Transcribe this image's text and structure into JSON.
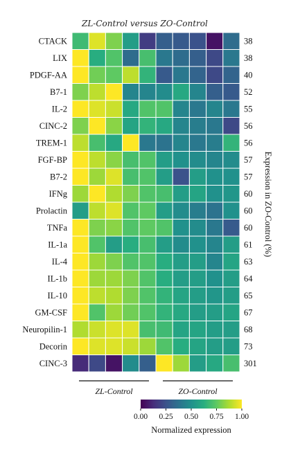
{
  "chart_data": {
    "type": "heatmap",
    "title": "ZL-Control versus ZO-Control",
    "rows": [
      "CTACK",
      "LIX",
      "PDGF-AA",
      "B7-1",
      "IL-2",
      "CINC-2",
      "TREM-1",
      "FGF-BP",
      "B7-2",
      "IFNg",
      "Prolactin",
      "TNFa",
      "IL-1a",
      "IL-4",
      "IL-1b",
      "IL-10",
      "GM-CSF",
      "Neuropilin-1",
      "Decorin",
      "CINC-3"
    ],
    "row_values": [
      38,
      38,
      40,
      52,
      55,
      56,
      56,
      57,
      57,
      60,
      60,
      60,
      61,
      63,
      64,
      65,
      67,
      68,
      73,
      301
    ],
    "right_axis_label": "Expression in ZO-Control (%)",
    "groups": [
      {
        "label": "ZL-Control",
        "columns": 5
      },
      {
        "label": "ZO-Control",
        "columns": 5
      }
    ],
    "values": [
      [
        0.68,
        0.95,
        0.8,
        0.55,
        0.18,
        0.3,
        0.28,
        0.25,
        0.05,
        0.35
      ],
      [
        1.0,
        0.62,
        0.72,
        0.35,
        0.7,
        0.4,
        0.35,
        0.3,
        0.22,
        0.4
      ],
      [
        1.0,
        0.78,
        0.75,
        0.9,
        0.65,
        0.28,
        0.4,
        0.32,
        0.22,
        0.32
      ],
      [
        0.8,
        0.9,
        1.0,
        0.45,
        0.45,
        0.48,
        0.6,
        0.45,
        0.3,
        0.28
      ],
      [
        1.0,
        0.95,
        0.92,
        0.6,
        0.72,
        0.72,
        0.45,
        0.4,
        0.45,
        0.4
      ],
      [
        0.8,
        1.0,
        0.82,
        0.58,
        0.65,
        0.6,
        0.45,
        0.42,
        0.4,
        0.22
      ],
      [
        0.9,
        0.7,
        0.6,
        1.0,
        0.4,
        0.38,
        0.45,
        0.4,
        0.42,
        0.65
      ],
      [
        1.0,
        0.9,
        0.82,
        0.7,
        0.72,
        0.55,
        0.5,
        0.48,
        0.45,
        0.48
      ],
      [
        1.0,
        0.85,
        0.95,
        0.7,
        0.72,
        0.55,
        0.25,
        0.55,
        0.5,
        0.5
      ],
      [
        0.85,
        1.0,
        0.88,
        0.8,
        0.72,
        0.7,
        0.55,
        0.58,
        0.5,
        0.52
      ],
      [
        0.55,
        0.9,
        0.95,
        0.72,
        0.75,
        0.55,
        0.48,
        0.42,
        0.38,
        0.5
      ],
      [
        1.0,
        0.8,
        0.82,
        0.72,
        0.75,
        0.72,
        0.5,
        0.48,
        0.4,
        0.28
      ],
      [
        1.0,
        0.72,
        0.55,
        0.62,
        0.7,
        0.55,
        0.48,
        0.5,
        0.45,
        0.55
      ],
      [
        1.0,
        0.85,
        0.8,
        0.72,
        0.72,
        0.62,
        0.55,
        0.55,
        0.45,
        0.58
      ],
      [
        1.0,
        0.85,
        0.85,
        0.8,
        0.72,
        0.62,
        0.55,
        0.55,
        0.5,
        0.55
      ],
      [
        1.0,
        0.9,
        0.88,
        0.8,
        0.72,
        0.65,
        0.58,
        0.55,
        0.52,
        0.55
      ],
      [
        1.0,
        0.72,
        0.85,
        0.78,
        0.72,
        0.65,
        0.6,
        0.55,
        0.55,
        0.58
      ],
      [
        0.88,
        0.92,
        0.95,
        0.95,
        0.7,
        0.68,
        0.58,
        0.58,
        0.55,
        0.55
      ],
      [
        1.0,
        0.95,
        0.95,
        0.92,
        0.85,
        0.72,
        0.62,
        0.58,
        0.55,
        0.55
      ],
      [
        0.12,
        0.22,
        0.05,
        0.48,
        0.3,
        1.0,
        0.85,
        0.55,
        0.6,
        0.7
      ]
    ],
    "colorbar": {
      "label": "Normalized expression",
      "ticks": [
        "0.00",
        "0.25",
        "0.50",
        "0.75",
        "1.00"
      ],
      "range": [
        0,
        1
      ],
      "palette": "viridis"
    },
    "grid": true
  }
}
